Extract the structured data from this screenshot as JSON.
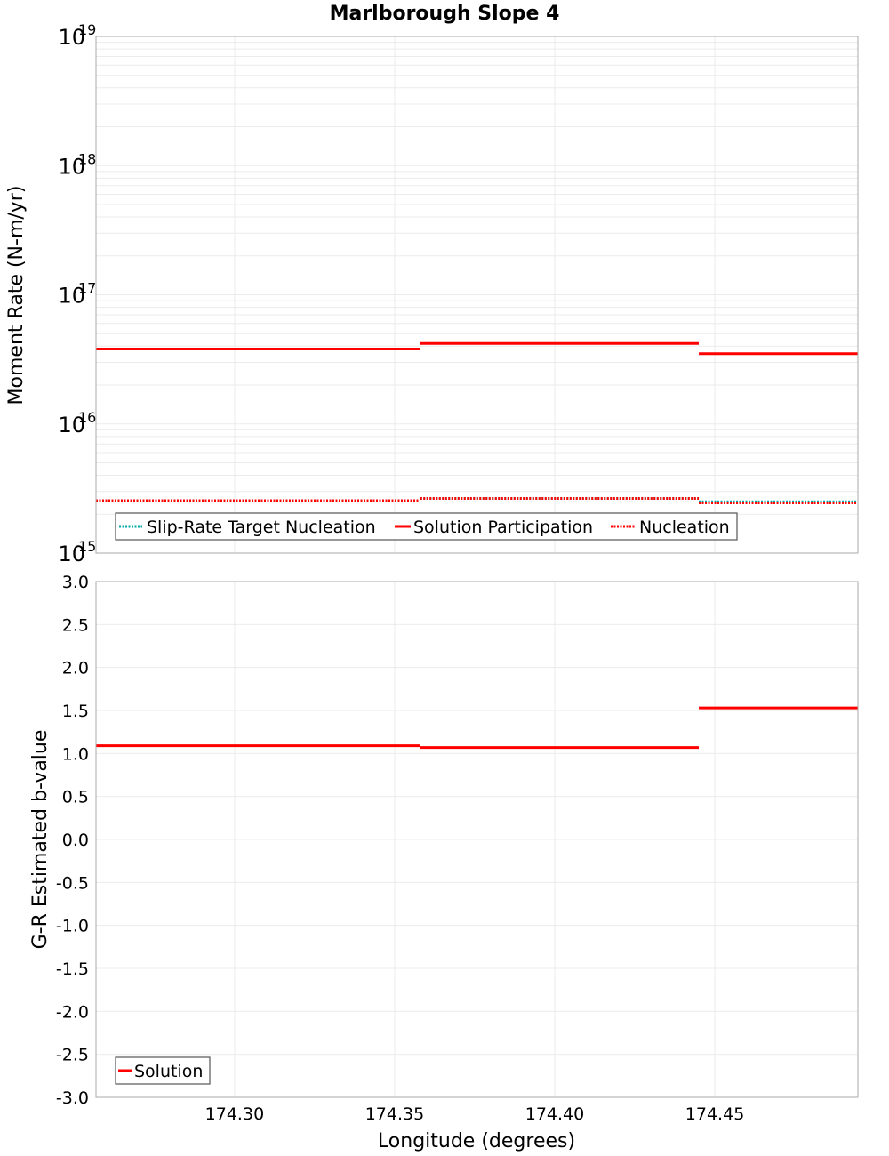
{
  "chart_data": [
    {
      "type": "line",
      "title": "Marlborough Slope 4",
      "xlabel": "Longitude (degrees)",
      "ylabel": "Moment Rate (N-m/yr)",
      "yscale": "log",
      "ylim": [
        1000000000000000.0,
        1e+19
      ],
      "xlim": [
        174.2567,
        174.4947
      ],
      "y_ticks": [
        {
          "base": "10",
          "exp": "19",
          "value": 1e+19
        },
        {
          "base": "10",
          "exp": "18",
          "value": 1e+18
        },
        {
          "base": "10",
          "exp": "17",
          "value": 1e+17
        },
        {
          "base": "10",
          "exp": "16",
          "value": 1e+16
        },
        {
          "base": "10",
          "exp": "15",
          "value": 1000000000000000.0
        }
      ],
      "grid": true,
      "legend_position": "lower-left",
      "series": [
        {
          "name": "Slip-Rate Target Nucleation",
          "style": "dotted",
          "color": "#00aaaa",
          "segments": [
            {
              "x0": 174.2567,
              "x1": 174.358,
              "y": 2550000000000000.0
            },
            {
              "x0": 174.358,
              "x1": 174.445,
              "y": 2650000000000000.0
            },
            {
              "x0": 174.445,
              "x1": 174.4947,
              "y": 2500000000000000.0
            }
          ]
        },
        {
          "name": "Solution Participation",
          "style": "solid",
          "color": "#ff0000",
          "segments": [
            {
              "x0": 174.2567,
              "x1": 174.358,
              "y": 3.8e+16
            },
            {
              "x0": 174.358,
              "x1": 174.445,
              "y": 4.2e+16
            },
            {
              "x0": 174.445,
              "x1": 174.4947,
              "y": 3.5e+16
            }
          ]
        },
        {
          "name": "Nucleation",
          "style": "dotted",
          "color": "#ff0000",
          "segments": [
            {
              "x0": 174.2567,
              "x1": 174.358,
              "y": 2550000000000000.0
            },
            {
              "x0": 174.358,
              "x1": 174.445,
              "y": 2650000000000000.0
            },
            {
              "x0": 174.445,
              "x1": 174.4947,
              "y": 2450000000000000.0
            }
          ]
        }
      ]
    },
    {
      "type": "line",
      "title": "",
      "xlabel": "Longitude (degrees)",
      "ylabel": "G-R Estimated b-value",
      "ylim": [
        -3.0,
        3.0
      ],
      "xlim": [
        174.2567,
        174.4947
      ],
      "y_ticks": [
        "3.0",
        "2.5",
        "2.0",
        "1.5",
        "1.0",
        "0.5",
        "0.0",
        "-0.5",
        "-1.0",
        "-1.5",
        "-2.0",
        "-2.5",
        "-3.0"
      ],
      "x_ticks": [
        "174.30",
        "174.35",
        "174.40",
        "174.45"
      ],
      "grid": true,
      "legend_position": "lower-left",
      "series": [
        {
          "name": "Solution",
          "style": "solid",
          "color": "#ff0000",
          "segments": [
            {
              "x0": 174.2567,
              "x1": 174.358,
              "y": 1.09
            },
            {
              "x0": 174.358,
              "x1": 174.445,
              "y": 1.07
            },
            {
              "x0": 174.445,
              "x1": 174.4947,
              "y": 1.53
            }
          ]
        }
      ]
    }
  ],
  "labels": {
    "title": "Marlborough Slope 4",
    "top_ylabel": "Moment Rate (N-m/yr)",
    "bottom_ylabel": "G-R Estimated b-value",
    "xlabel": "Longitude (degrees)",
    "top_legend": [
      "Slip-Rate Target Nucleation",
      "Solution Participation",
      "Nucleation"
    ],
    "bottom_legend": [
      "Solution"
    ]
  },
  "colors": {
    "red": "#ff0000",
    "cyan": "#00aaaa",
    "grid": "#ebebeb",
    "frame": "#aaaaaa"
  }
}
